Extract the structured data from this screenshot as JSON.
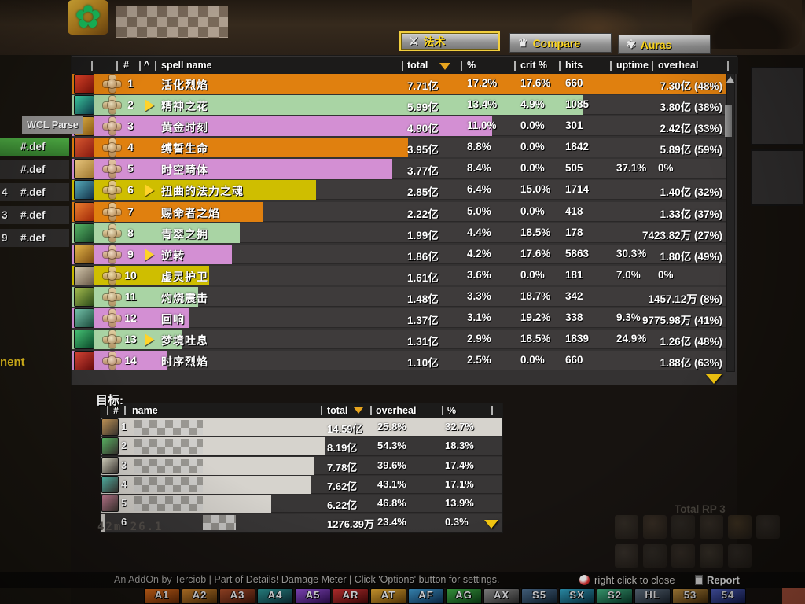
{
  "colors": {
    "orange": "#e0800f",
    "green": "#a9d4a4",
    "purple": "#d38fd3",
    "yellow": "#cfbe00",
    "target_bar": "#d6d3cd",
    "tab_text": "#ffd81e",
    "highlight_green": "#4fae45"
  },
  "tabs": [
    {
      "label": "法术",
      "icon": "crossed-swords-icon",
      "glyph": "⚔",
      "selected": true
    },
    {
      "label": "Compare",
      "icon": "crown-icon",
      "glyph": "♛",
      "selected": false
    },
    {
      "label": "Auras",
      "icon": "swirl-icon",
      "glyph": "✾",
      "selected": false
    }
  ],
  "spell_table": {
    "columns": {
      "rank": "#",
      "sort": "^",
      "name": "spell name",
      "total": "total",
      "pct": "%",
      "crit": "crit %",
      "hits": "hits",
      "uptime": "uptime",
      "overheal": "overheal"
    },
    "rows": [
      {
        "rank": "1",
        "name": "活化烈焰",
        "total": "7.71亿",
        "pct": "17.2%",
        "crit": "17.6%",
        "hits": "660",
        "uptime": "",
        "overheal": "7.30亿 (48%)",
        "color": "orange",
        "bar_pct": 100,
        "expand": false,
        "icon": [
          "#e8452a",
          "#7a1208"
        ]
      },
      {
        "rank": "2",
        "name": "精神之花",
        "total": "5.99亿",
        "pct": "13.4%",
        "crit": "4.9%",
        "hits": "1085",
        "uptime": "",
        "overheal": "3.80亿 (38%)",
        "color": "green",
        "bar_pct": 77.9,
        "expand": true,
        "icon": [
          "#3fd4a8",
          "#0c3a4a"
        ]
      },
      {
        "rank": "3",
        "name": "黄金时刻",
        "total": "4.90亿",
        "pct": "11.0%",
        "crit": "0.0%",
        "hits": "301",
        "uptime": "",
        "overheal": "2.42亿 (33%)",
        "color": "purple",
        "bar_pct": 64.0,
        "expand": false,
        "icon": [
          "#f0c050",
          "#8a5a10"
        ]
      },
      {
        "rank": "4",
        "name": "缚誓生命",
        "total": "3.95亿",
        "pct": "8.8%",
        "crit": "0.0%",
        "hits": "1842",
        "uptime": "",
        "overheal": "5.89亿 (59%)",
        "color": "orange",
        "bar_pct": 51.2,
        "expand": false,
        "icon": [
          "#e05a30",
          "#8a1a10"
        ]
      },
      {
        "rank": "5",
        "name": "时空畸体",
        "total": "3.77亿",
        "pct": "8.4%",
        "crit": "0.0%",
        "hits": "505",
        "uptime": "37.1%",
        "overheal": "0%",
        "color": "purple",
        "bar_pct": 48.8,
        "expand": false,
        "icon": [
          "#f0cc80",
          "#a07830"
        ]
      },
      {
        "rank": "6",
        "name": "扭曲的法力之魂",
        "total": "2.85亿",
        "pct": "6.4%",
        "crit": "15.0%",
        "hits": "1714",
        "uptime": "",
        "overheal": "1.40亿 (32%)",
        "color": "yellow",
        "bar_pct": 37.2,
        "expand": true,
        "icon": [
          "#58b0c0",
          "#123048"
        ]
      },
      {
        "rank": "7",
        "name": "赐命者之焰",
        "total": "2.22亿",
        "pct": "5.0%",
        "crit": "0.0%",
        "hits": "418",
        "uptime": "",
        "overheal": "1.33亿 (37%)",
        "color": "orange",
        "bar_pct": 29.1,
        "expand": false,
        "icon": [
          "#f08030",
          "#a02808"
        ]
      },
      {
        "rank": "8",
        "name": "青翠之拥",
        "total": "1.99亿",
        "pct": "4.4%",
        "crit": "18.5%",
        "hits": "178",
        "uptime": "",
        "overheal": "7423.82万 (27%)",
        "color": "green",
        "bar_pct": 25.6,
        "expand": false,
        "icon": [
          "#58b868",
          "#184a28"
        ]
      },
      {
        "rank": "9",
        "name": "逆转",
        "total": "1.86亿",
        "pct": "4.2%",
        "crit": "17.6%",
        "hits": "5863",
        "uptime": "30.3%",
        "overheal": "1.80亿 (49%)",
        "color": "purple",
        "bar_pct": 24.4,
        "expand": true,
        "icon": [
          "#e8b84a",
          "#7a4a10"
        ]
      },
      {
        "rank": "10",
        "name": "虚灵护卫",
        "total": "1.61亿",
        "pct": "3.6%",
        "crit": "0.0%",
        "hits": "181",
        "uptime": "7.0%",
        "overheal": "0%",
        "color": "yellow",
        "bar_pct": 20.9,
        "expand": false,
        "icon": [
          "#d8cbb0",
          "#6a5a48"
        ]
      },
      {
        "rank": "11",
        "name": "灼烧震击",
        "total": "1.48亿",
        "pct": "3.3%",
        "crit": "18.7%",
        "hits": "342",
        "uptime": "",
        "overheal": "1457.12万 (8%)",
        "color": "green",
        "bar_pct": 19.2,
        "expand": false,
        "icon": [
          "#a8c050",
          "#2a4a18"
        ]
      },
      {
        "rank": "12",
        "name": "回响",
        "total": "1.37亿",
        "pct": "3.1%",
        "crit": "19.2%",
        "hits": "338",
        "uptime": "9.3%",
        "overheal": "9775.98万 (41%)",
        "color": "purple",
        "bar_pct": 18.0,
        "expand": false,
        "icon": [
          "#78c8b0",
          "#1a4a3a"
        ]
      },
      {
        "rank": "13",
        "name": "梦境吐息",
        "total": "1.31亿",
        "pct": "2.9%",
        "crit": "18.5%",
        "hits": "1839",
        "uptime": "24.9%",
        "overheal": "1.26亿 (48%)",
        "color": "green",
        "bar_pct": 16.9,
        "expand": true,
        "icon": [
          "#48c878",
          "#0a4a2a"
        ]
      },
      {
        "rank": "14",
        "name": "时序烈焰",
        "total": "1.10亿",
        "pct": "2.5%",
        "crit": "0.0%",
        "hits": "660",
        "uptime": "",
        "overheal": "1.88亿 (63%)",
        "color": "purple",
        "bar_pct": 14.5,
        "expand": false,
        "icon": [
          "#e04838",
          "#6a0c0c"
        ]
      }
    ]
  },
  "targets": {
    "label": "目标:",
    "columns": {
      "rank": "#",
      "name": "name",
      "total": "total",
      "overheal": "overheal",
      "pct": "%"
    },
    "rows": [
      {
        "rank": "1",
        "total": "14.59亿",
        "overheal": "25.8%",
        "pct": "32.7%",
        "bar_pct": 100,
        "icon": "#c89a5a"
      },
      {
        "rank": "2",
        "total": "8.19亿",
        "overheal": "54.3%",
        "pct": "18.3%",
        "bar_pct": 56.0,
        "icon": "#5fbf6a"
      },
      {
        "rank": "3",
        "total": "7.78亿",
        "overheal": "39.6%",
        "pct": "17.4%",
        "bar_pct": 53.2,
        "icon": "#e5e3cf"
      },
      {
        "rank": "4",
        "total": "7.62亿",
        "overheal": "43.1%",
        "pct": "17.1%",
        "bar_pct": 52.3,
        "icon": "#59c4b5"
      },
      {
        "rank": "5",
        "total": "6.22亿",
        "overheal": "46.8%",
        "pct": "13.9%",
        "bar_pct": 42.5,
        "icon": "#c97f97"
      },
      {
        "rank": "6",
        "total": "1276.39万",
        "overheal": "23.4%",
        "pct": "0.3%",
        "bar_pct": 1,
        "icon": ""
      }
    ]
  },
  "sidebar": {
    "header": "WCL Parse",
    "items": [
      {
        "prefix": "",
        "label": "#.def",
        "active": true
      },
      {
        "prefix": "",
        "label": "#.def",
        "active": false
      },
      {
        "prefix": "4",
        "label": "#.def",
        "active": false
      },
      {
        "prefix": "3",
        "label": "#.def",
        "active": false
      },
      {
        "prefix": "9",
        "label": "#.def",
        "active": false
      }
    ]
  },
  "misc": {
    "timer": "42m 26.1",
    "total_rp": "Total RP 3",
    "cut_text": "nent"
  },
  "footer": {
    "credit": "An AddOn by Terciob | Part of Details! Damage Meter | Click 'Options' button for settings.",
    "close_hint": "right click to close",
    "report": "Report"
  },
  "actionbar": {
    "keys": [
      {
        "k": "A1",
        "c1": "#d96a1a",
        "c2": "#5a2505"
      },
      {
        "k": "A2",
        "c1": "#c87f2a",
        "c2": "#4a2c08"
      },
      {
        "k": "A3",
        "c1": "#a54a28",
        "c2": "#3c1408"
      },
      {
        "k": "A4",
        "c1": "#2a8f8f",
        "c2": "#0c2b33"
      },
      {
        "k": "A5",
        "c1": "#8a4ac8",
        "c2": "#2a0c4a"
      },
      {
        "k": "AR",
        "c1": "#c03030",
        "c2": "#400808"
      },
      {
        "k": "AT",
        "c1": "#d8a030",
        "c2": "#5a3a08"
      },
      {
        "k": "AF",
        "c1": "#3a8fc0",
        "c2": "#0c2a4a"
      },
      {
        "k": "AG",
        "c1": "#3aa040",
        "c2": "#0c3a14"
      },
      {
        "k": "AX",
        "c1": "#888888",
        "c2": "#2a2a2a"
      },
      {
        "k": "S5",
        "c1": "#4a6a8a",
        "c2": "#10202e"
      },
      {
        "k": "SX",
        "c1": "#30a0c0",
        "c2": "#083040"
      },
      {
        "k": "S2",
        "c1": "#40b080",
        "c2": "#083828"
      },
      {
        "k": "HL",
        "c1": "#607080",
        "c2": "#18202a"
      },
      {
        "k": "53",
        "c1": "#c09040",
        "c2": "#402808"
      },
      {
        "k": "54",
        "c1": "#5060c0",
        "c2": "#101848"
      }
    ]
  },
  "dim_icons": [
    "#3a332b",
    "#42362a",
    "#332e28",
    "#3d352c",
    "#4a3b26",
    "#38322c",
    "#3f3831",
    "#35302a",
    "#3b332b",
    "#413a30",
    "#36302a"
  ]
}
